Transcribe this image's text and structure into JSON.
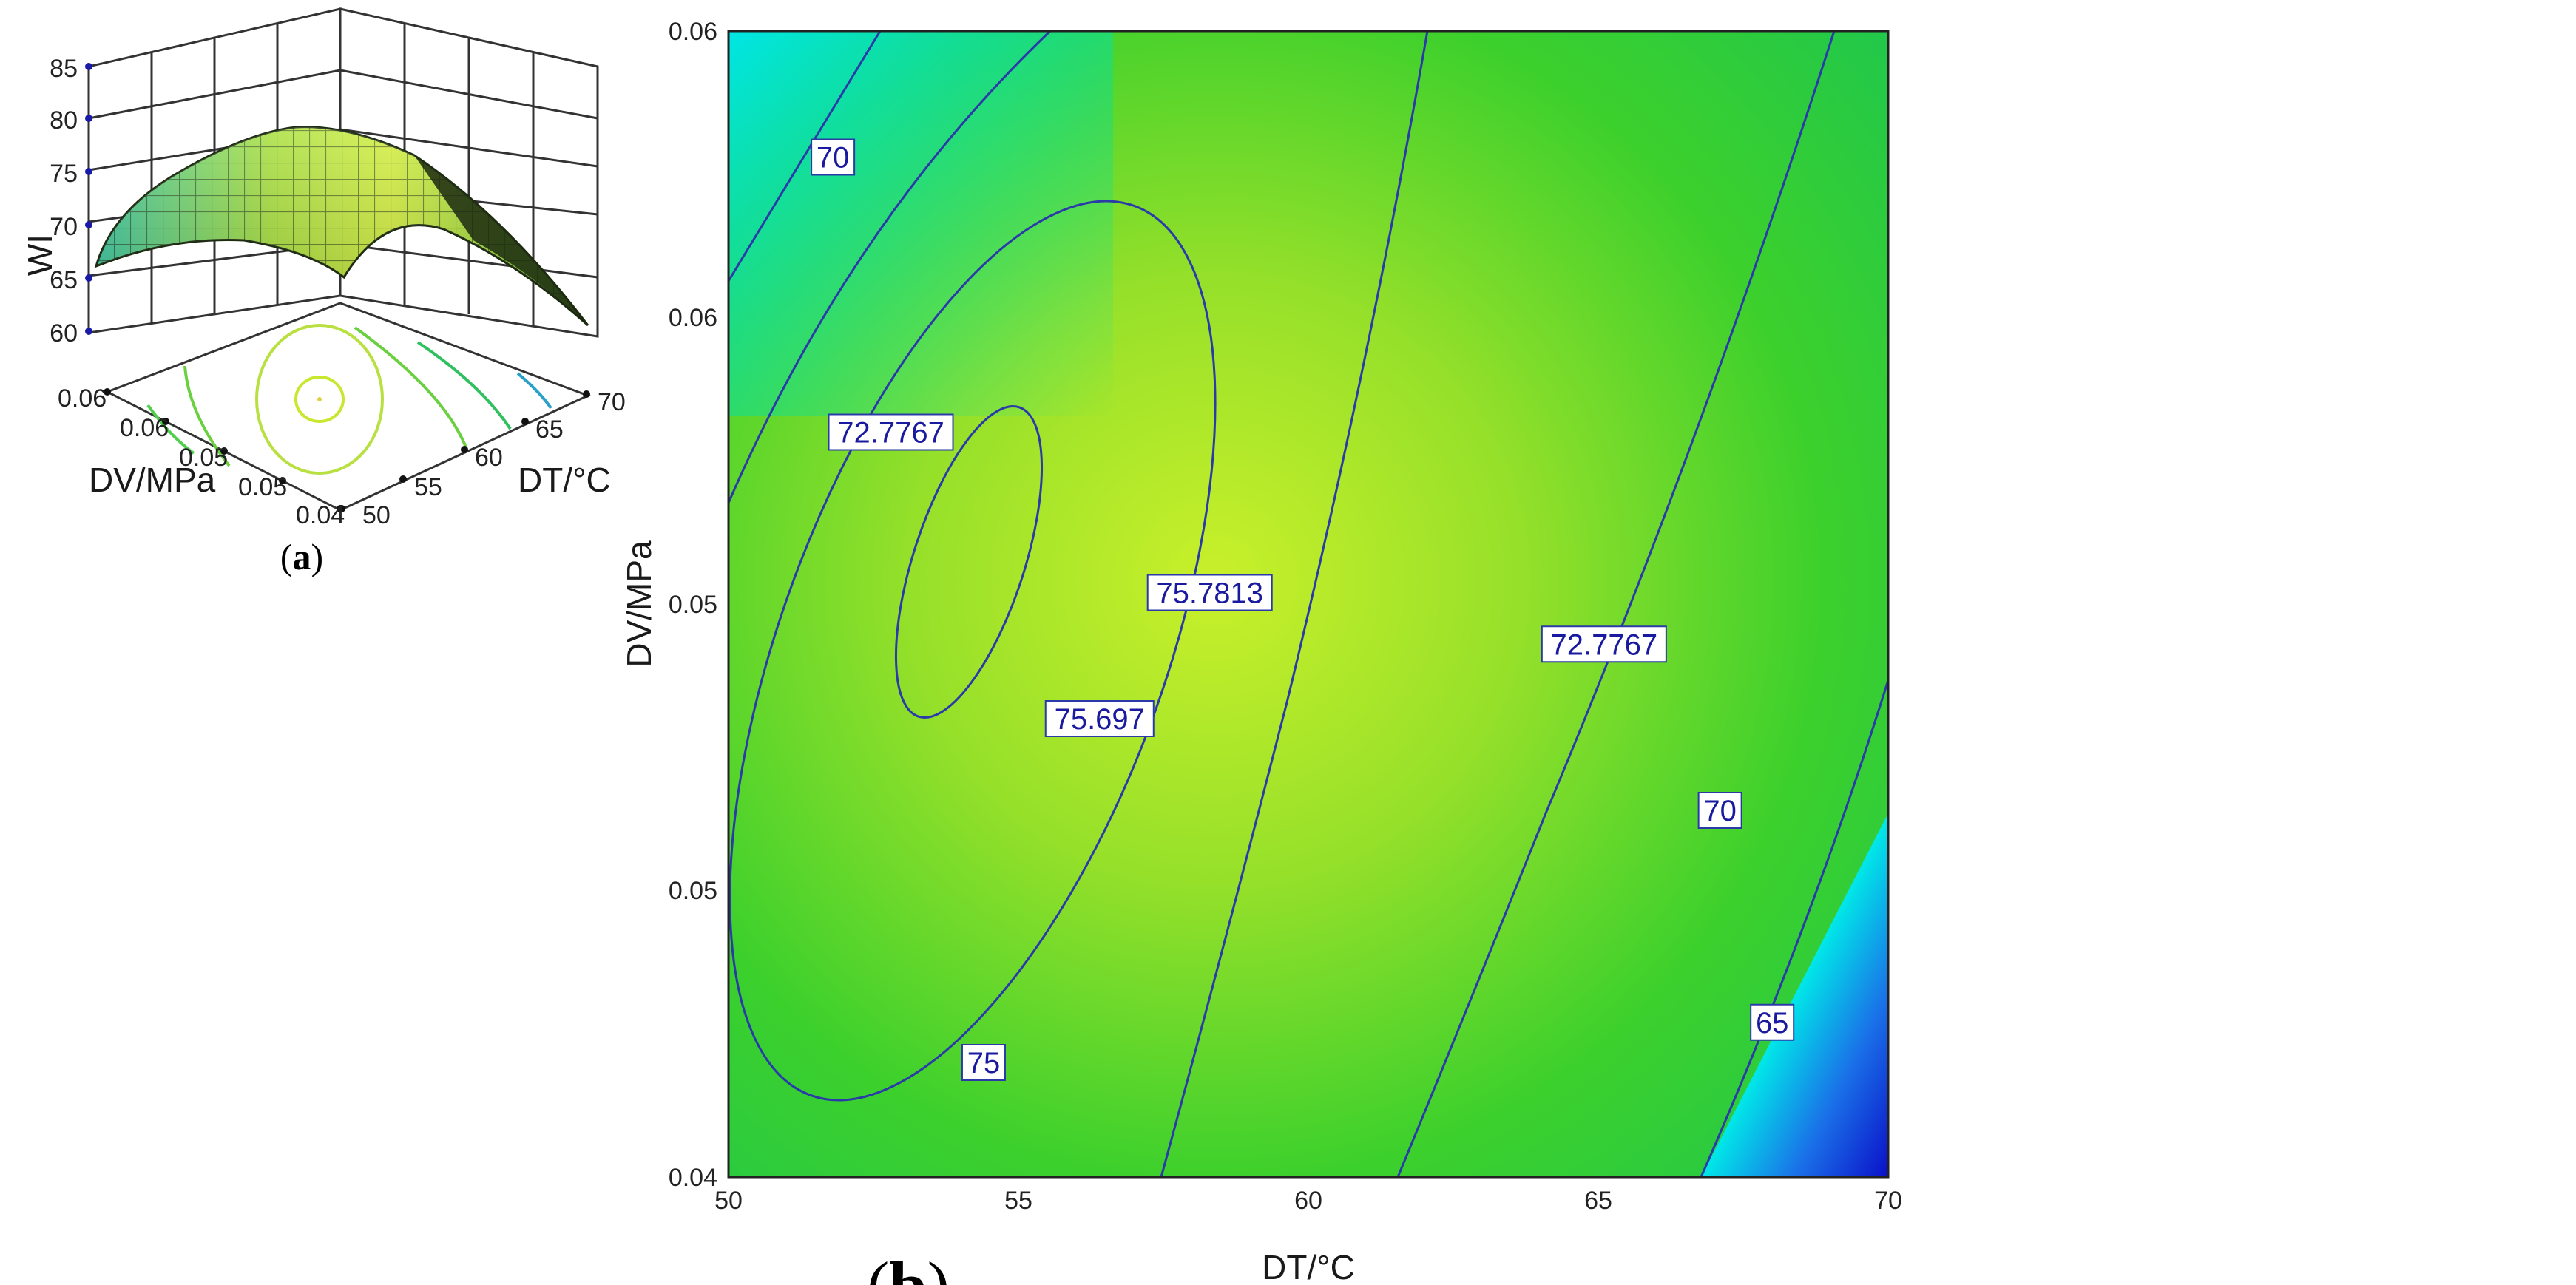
{
  "panels": {
    "a": {
      "paren_open": "(",
      "letter": "a",
      "paren_close": ")"
    },
    "b": {
      "paren_open": "(",
      "letter": "b",
      "paren_close": ")"
    }
  },
  "chart_data": [
    {
      "type": "surface",
      "panel": "a",
      "title": "",
      "zlabel": "WI",
      "xlabel": "DT/°C",
      "ylabel": "DV/MPa",
      "z_ticks": [
        "60",
        "65",
        "70",
        "75",
        "80",
        "85"
      ],
      "x_ticks": [
        "50",
        "55",
        "60",
        "65",
        "70"
      ],
      "y_ticks": [
        "0.04",
        "0.05",
        "0.05",
        "0.06",
        "0.06"
      ],
      "zlim": [
        60,
        85
      ],
      "xlim": [
        50,
        70
      ],
      "ylim": [
        0.04,
        0.06
      ],
      "surface_peak": {
        "DT": 58,
        "DV": 0.051,
        "WI": 75.78
      },
      "floor_contours": [
        65,
        70,
        72.7767,
        75,
        75.697
      ],
      "colors": {
        "surface_low": "#1fb8a6",
        "surface_mid": "#7fd43a",
        "surface_high": "#c8f020",
        "grid": "#222222"
      }
    },
    {
      "type": "contour",
      "panel": "b",
      "title": "",
      "xlabel": "DT/°C",
      "ylabel": "DV/MPa",
      "x_ticks": [
        "50",
        "55",
        "60",
        "65",
        "70"
      ],
      "y_ticks": [
        "0.04",
        "0.05",
        "0.05",
        "0.06",
        "0.06"
      ],
      "xlim": [
        50,
        70
      ],
      "ylim": [
        0.04,
        0.06
      ],
      "contour_labels": [
        {
          "text": "70",
          "DT": 51.8,
          "DV": 0.0578
        },
        {
          "text": "72.7767",
          "DT": 52.8,
          "DV": 0.053
        },
        {
          "text": "75.7813",
          "DT": 58.3,
          "DV": 0.0502
        },
        {
          "text": "75.697",
          "DT": 56.4,
          "DV": 0.048
        },
        {
          "text": "72.7767",
          "DT": 65.1,
          "DV": 0.0493
        },
        {
          "text": "70",
          "DT": 67.1,
          "DV": 0.0464
        },
        {
          "text": "75",
          "DT": 54.4,
          "DV": 0.042
        },
        {
          "text": "65",
          "DT": 68.0,
          "DV": 0.0427
        }
      ],
      "colors": {
        "high": "#c5f028",
        "mid": "#2fd22a",
        "low_cyan": "#00e8e8",
        "low_blue": "#1020c8",
        "contour": "#2a3aa8"
      }
    }
  ]
}
